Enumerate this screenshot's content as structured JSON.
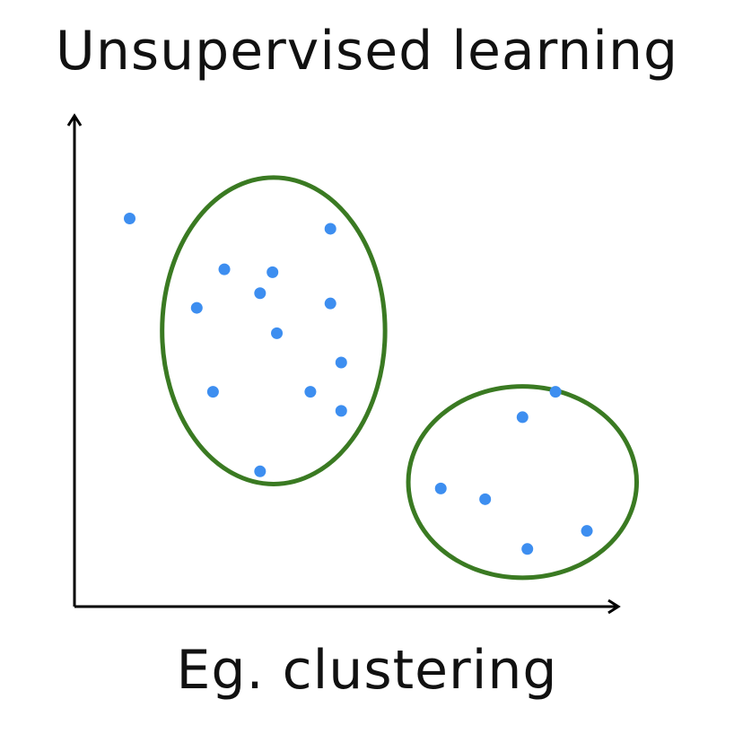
{
  "title": "Unsupervised learning",
  "caption": "Eg. clustering",
  "colors": {
    "point": "#3d8ef0",
    "cluster_outline": "#3a7a22",
    "axis": "#000000",
    "text": "#111111"
  },
  "chart_data": {
    "type": "scatter",
    "title": "Unsupervised learning",
    "caption": "Eg. clustering",
    "xlabel": "",
    "ylabel": "",
    "xlim": [
      0,
      100
    ],
    "ylim": [
      0,
      100
    ],
    "grid": false,
    "points": [
      {
        "x": 10.2,
        "y": 79.5
      },
      {
        "x": 27.7,
        "y": 69.1
      },
      {
        "x": 36.6,
        "y": 68.5
      },
      {
        "x": 34.3,
        "y": 64.2
      },
      {
        "x": 22.6,
        "y": 61.2
      },
      {
        "x": 47.3,
        "y": 77.4
      },
      {
        "x": 47.3,
        "y": 62.1
      },
      {
        "x": 37.4,
        "y": 56.0
      },
      {
        "x": 49.3,
        "y": 50.0
      },
      {
        "x": 25.6,
        "y": 44.0
      },
      {
        "x": 43.6,
        "y": 44.0
      },
      {
        "x": 49.3,
        "y": 40.1
      },
      {
        "x": 34.3,
        "y": 27.7
      },
      {
        "x": 88.9,
        "y": 44.0
      },
      {
        "x": 82.8,
        "y": 38.8
      },
      {
        "x": 67.7,
        "y": 24.2
      },
      {
        "x": 75.9,
        "y": 22.0
      },
      {
        "x": 94.7,
        "y": 15.5
      },
      {
        "x": 83.7,
        "y": 11.8
      }
    ],
    "clusters": [
      {
        "cx": 36.8,
        "cy": 56.5,
        "rx": 20.6,
        "ry": 31.4
      },
      {
        "cx": 82.8,
        "cy": 25.5,
        "rx": 21.1,
        "ry": 19.6
      }
    ]
  }
}
